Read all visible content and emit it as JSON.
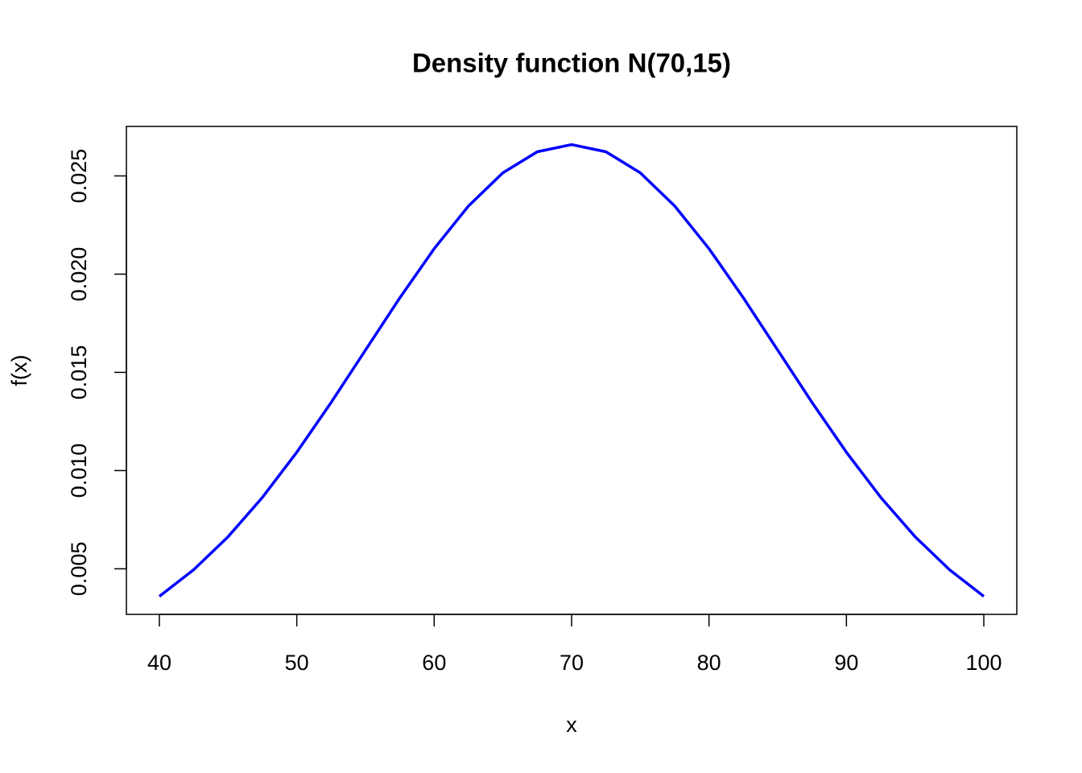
{
  "chart_data": {
    "type": "line",
    "title": "Density function N(70,15)",
    "xlabel": "x",
    "ylabel": "f(x)",
    "x": [
      40,
      42.5,
      45,
      47.5,
      50,
      52.5,
      55,
      57.5,
      60,
      62.5,
      65,
      67.5,
      70,
      72.5,
      75,
      77.5,
      80,
      82.5,
      85,
      87.5,
      90,
      92.5,
      95,
      97.5,
      100
    ],
    "series": [
      {
        "color": "#0000ff",
        "values": [
          0.003599,
          0.004954,
          0.006632,
          0.008634,
          0.010934,
          0.013467,
          0.016131,
          0.018794,
          0.021297,
          0.023471,
          0.025159,
          0.026229,
          0.026596,
          0.026229,
          0.025159,
          0.023471,
          0.021297,
          0.018794,
          0.016131,
          0.013467,
          0.010934,
          0.008634,
          0.006632,
          0.004954,
          0.003599
        ]
      }
    ],
    "xlim": [
      37.6,
      102.4
    ],
    "xticks": [
      40,
      50,
      60,
      70,
      80,
      90,
      100
    ],
    "ylim": [
      0.00268,
      0.02752
    ],
    "yticks": [
      0.005,
      {
        "value": 0.01,
        "label": "0.010"
      },
      0.015,
      {
        "value": 0.02,
        "label": "0.020"
      },
      0.025
    ]
  }
}
